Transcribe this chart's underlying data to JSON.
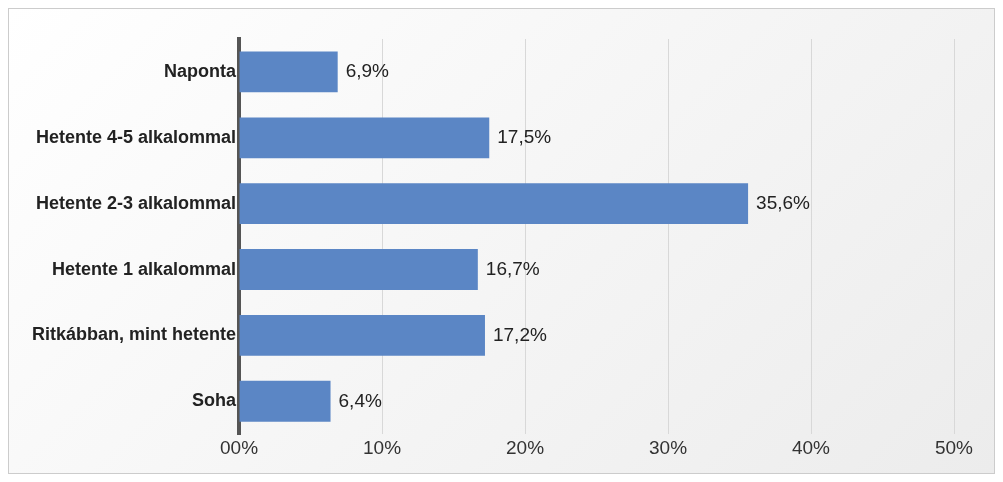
{
  "chart_data": {
    "type": "bar",
    "orientation": "horizontal",
    "categories": [
      "Naponta",
      "Hetente 4-5 alkalommal",
      "Hetente 2-3 alkalommal",
      "Hetente 1 alkalommal",
      "Ritkábban, mint hetente",
      "Soha"
    ],
    "values": [
      6.9,
      17.5,
      35.6,
      16.7,
      17.2,
      6.4
    ],
    "value_labels": [
      "6,9%",
      "17,5%",
      "35,6%",
      "16,7%",
      "17,2%",
      "6,4%"
    ],
    "color": "#5b86c5",
    "xlim": [
      0,
      50
    ],
    "xticks": [
      {
        "value": 0,
        "label": "00%"
      },
      {
        "value": 10,
        "label": "10%"
      },
      {
        "value": 20,
        "label": "20%"
      },
      {
        "value": 30,
        "label": "30%"
      },
      {
        "value": 40,
        "label": "40%"
      },
      {
        "value": 50,
        "label": "50%"
      }
    ],
    "grid": "x"
  }
}
